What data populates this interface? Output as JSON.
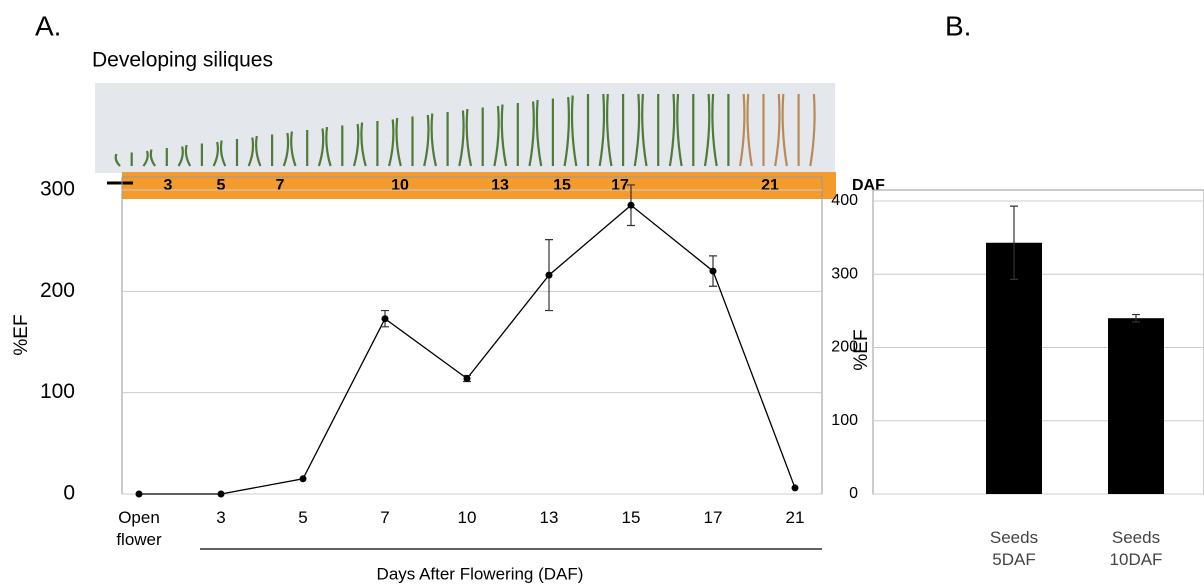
{
  "panel_labels": [
    "A.",
    "B."
  ],
  "silique_strip": {
    "title": "Developing siliques",
    "labels": [
      "3",
      "5",
      "7",
      "10",
      "13",
      "15",
      "17",
      "21"
    ],
    "unit": "DAF"
  },
  "chart_data": [
    {
      "type": "line",
      "y_label": "%EF",
      "x_label": "Days After Flowering (DAF)",
      "categories": [
        "Open flower",
        "3",
        "5",
        "7",
        "10",
        "13",
        "15",
        "17",
        "21"
      ],
      "values": [
        0,
        0,
        15,
        173,
        114,
        216,
        285,
        220,
        6
      ],
      "errors": [
        0,
        0,
        0,
        8,
        3,
        35,
        20,
        15,
        0
      ],
      "color": "#000000",
      "ylim": [
        0,
        300
      ],
      "yticks": [
        0,
        100,
        200,
        300
      ],
      "grid": true
    },
    {
      "type": "bar",
      "y_label": "%EF",
      "categories": [
        "Seeds 5DAF",
        "Seeds 10DAF"
      ],
      "values": [
        343,
        240
      ],
      "errors": [
        50,
        5
      ],
      "color": "#000000",
      "ylim": [
        0,
        400
      ],
      "yticks": [
        0,
        100,
        200,
        300,
        400
      ],
      "grid": true
    }
  ]
}
